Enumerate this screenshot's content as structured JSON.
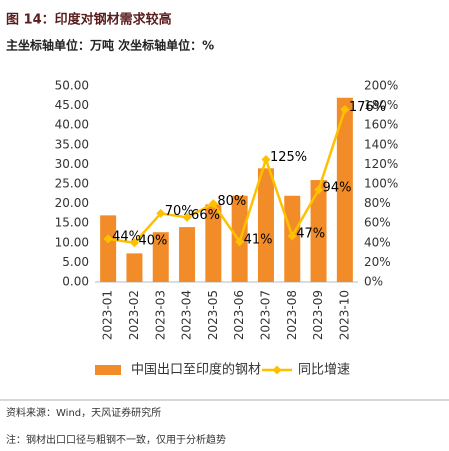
{
  "chart_data": {
    "type": "bar-line",
    "title": "图 14：印度对钢材需求较高",
    "subtitle": "主坐标轴单位：万吨 次坐标轴单位：%",
    "categories": [
      "2023-01",
      "2023-02",
      "2023-03",
      "2023-04",
      "2023-05",
      "2023-06",
      "2023-07",
      "2023-08",
      "2023-09",
      "2023-10"
    ],
    "series": [
      {
        "name": "中国出口至印度的钢材",
        "type": "bar",
        "color": "#f28c28",
        "values": [
          17,
          7.3,
          12.7,
          14,
          19.8,
          22,
          29,
          22,
          26,
          47
        ]
      },
      {
        "name": "同比增速",
        "type": "line",
        "axis": "y2",
        "color": "#ffc000",
        "values": [
          44,
          40,
          70,
          66,
          80,
          41,
          125,
          47,
          94,
          176
        ],
        "value_labels": [
          "44%",
          "40%",
          "70%",
          "66%",
          "80%",
          "41%",
          "125%",
          "47%",
          "94%",
          "176%"
        ]
      }
    ],
    "ylim": [
      0,
      50
    ],
    "yticks": [
      {
        "value": 0,
        "label": "0.00"
      },
      {
        "value": 5,
        "label": "5.00"
      },
      {
        "value": 10,
        "label": "10.00"
      },
      {
        "value": 15,
        "label": "15.00"
      },
      {
        "value": 20,
        "label": "20.00"
      },
      {
        "value": 25,
        "label": "25.00"
      },
      {
        "value": 30,
        "label": "30.00"
      },
      {
        "value": 35,
        "label": "35.00"
      },
      {
        "value": 40,
        "label": "40.00"
      },
      {
        "value": 45,
        "label": "45.00"
      },
      {
        "value": 50,
        "label": "50.00"
      }
    ],
    "y2lim": [
      0,
      200
    ],
    "y2ticks": [
      {
        "value": 0,
        "label": "0%"
      },
      {
        "value": 20,
        "label": "20%"
      },
      {
        "value": 40,
        "label": "40%"
      },
      {
        "value": 60,
        "label": "60%"
      },
      {
        "value": 80,
        "label": "80%"
      },
      {
        "value": 100,
        "label": "100%"
      },
      {
        "value": 120,
        "label": "120%"
      },
      {
        "value": 140,
        "label": "140%"
      },
      {
        "value": 160,
        "label": "160%"
      },
      {
        "value": 180,
        "label": "180%"
      },
      {
        "value": 200,
        "label": "200%"
      }
    ],
    "legend": "bottom",
    "source": "资料来源：Wind，天风证券研究所",
    "note": "注：钢材出口口径与粗钢不一致，仅用于分析趋势"
  }
}
